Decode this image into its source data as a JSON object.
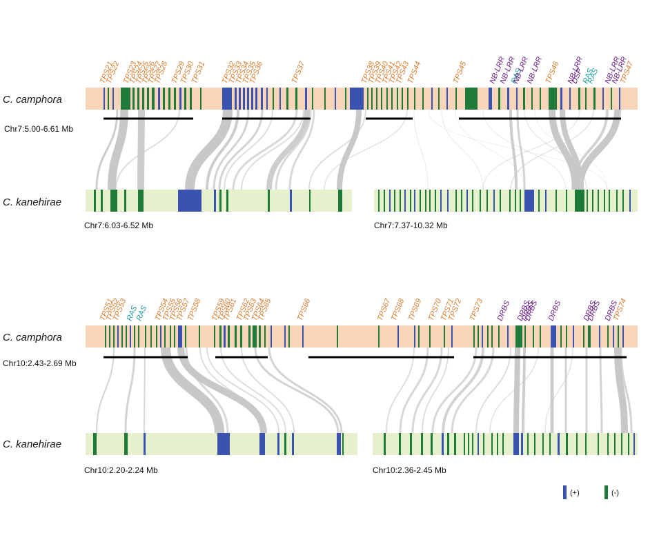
{
  "colors": {
    "camphora_bg": "#f8d5b8",
    "kanehirae_bg": "#e6f0cc",
    "plus_strand": "#3a52b0",
    "minus_strand": "#1f7a3a",
    "tps_label": "#d97a2a",
    "nblrr_label": "#6a1f86",
    "ras_label": "#1f9c9c",
    "link": "#c8c8c8",
    "block_line": "#000000"
  },
  "species": {
    "camphora": "C. camphora",
    "kanehirae": "C. kanehirae"
  },
  "legend": {
    "plus": "(+)",
    "minus": "(-)"
  },
  "panels": [
    {
      "coords": {
        "camphora": "Chr7:5.00-6.61 Mb",
        "kanehirae_left": "Chr7:6.03-6.52 Mb",
        "kanehirae_right": "Chr7:7.37-10.32 Mb"
      },
      "gene_labels": [
        {
          "t": "TPS21",
          "c": "tps"
        },
        {
          "t": "TPS22",
          "c": "tps"
        },
        {
          "t": "TPS23",
          "c": "tps"
        },
        {
          "t": "TPS24",
          "c": "tps"
        },
        {
          "t": "TPS25",
          "c": "tps"
        },
        {
          "t": "TPS26",
          "c": "tps"
        },
        {
          "t": "TPS27",
          "c": "tps"
        },
        {
          "t": "TPS28",
          "c": "tps"
        },
        {
          "t": "TPS29",
          "c": "tps"
        },
        {
          "t": "TPS30",
          "c": "tps"
        },
        {
          "t": "TPS31",
          "c": "tps"
        },
        {
          "t": "TPS32",
          "c": "tps"
        },
        {
          "t": "TPS33",
          "c": "tps"
        },
        {
          "t": "TPS34",
          "c": "tps"
        },
        {
          "t": "TPS35",
          "c": "tps"
        },
        {
          "t": "TPS36",
          "c": "tps"
        },
        {
          "t": "TPS37",
          "c": "tps"
        },
        {
          "t": "TPS38",
          "c": "tps"
        },
        {
          "t": "TPS39",
          "c": "tps"
        },
        {
          "t": "TPS40",
          "c": "tps"
        },
        {
          "t": "TPS41",
          "c": "tps"
        },
        {
          "t": "TPS42",
          "c": "tps"
        },
        {
          "t": "TPS43",
          "c": "tps"
        },
        {
          "t": "TPS44",
          "c": "tps"
        },
        {
          "t": "TPS45",
          "c": "tps"
        },
        {
          "t": "NB-LRR",
          "c": "nb"
        },
        {
          "t": "NB-LRR",
          "c": "nb"
        },
        {
          "t": "RAS",
          "c": "ras"
        },
        {
          "t": "NB-LRR",
          "c": "nb"
        },
        {
          "t": "NB-LRR",
          "c": "nb"
        },
        {
          "t": "TPS46",
          "c": "tps"
        },
        {
          "t": "NB-LRR",
          "c": "nb"
        },
        {
          "t": "DSP",
          "c": "nb"
        },
        {
          "t": "RAS",
          "c": "ras"
        },
        {
          "t": "RAS",
          "c": "ras"
        },
        {
          "t": "NB-LRR",
          "c": "nb"
        },
        {
          "t": "NB-LRR",
          "c": "nb"
        },
        {
          "t": "TPS47",
          "c": "tps"
        }
      ]
    },
    {
      "coords": {
        "camphora": "Chr10:2.43-2.69 Mb",
        "kanehirae_left": "Chr10:2.20-2.24 Mb",
        "kanehirae_right": "Chr10:2.36-2.45 Mb"
      },
      "gene_labels": [
        {
          "t": "TPS51",
          "c": "tps"
        },
        {
          "t": "TPS52",
          "c": "tps"
        },
        {
          "t": "TPS53",
          "c": "tps"
        },
        {
          "t": "RAS",
          "c": "ras"
        },
        {
          "t": "RAS",
          "c": "ras"
        },
        {
          "t": "TPS54",
          "c": "tps"
        },
        {
          "t": "TPS55",
          "c": "tps"
        },
        {
          "t": "TPS56",
          "c": "tps"
        },
        {
          "t": "TPS57",
          "c": "tps"
        },
        {
          "t": "TPS58",
          "c": "tps"
        },
        {
          "t": "TPS59",
          "c": "tps"
        },
        {
          "t": "TPS60",
          "c": "tps"
        },
        {
          "t": "TPS61",
          "c": "tps"
        },
        {
          "t": "TPS62",
          "c": "tps"
        },
        {
          "t": "TPS63",
          "c": "tps"
        },
        {
          "t": "TPS64",
          "c": "tps"
        },
        {
          "t": "TPS65",
          "c": "tps"
        },
        {
          "t": "TPS66",
          "c": "tps"
        },
        {
          "t": "TPS67",
          "c": "tps"
        },
        {
          "t": "TPS68",
          "c": "tps"
        },
        {
          "t": "TPS69",
          "c": "tps"
        },
        {
          "t": "TPS70",
          "c": "tps"
        },
        {
          "t": "TPS71",
          "c": "tps"
        },
        {
          "t": "TPS72",
          "c": "tps"
        },
        {
          "t": "TPS73",
          "c": "tps"
        },
        {
          "t": "DRBS",
          "c": "nb"
        },
        {
          "t": "DRBS",
          "c": "nb"
        },
        {
          "t": "DRBS",
          "c": "nb"
        },
        {
          "t": "DRBS",
          "c": "nb"
        },
        {
          "t": "DRBS",
          "c": "nb"
        },
        {
          "t": "DRBS",
          "c": "nb"
        },
        {
          "t": "DRBS",
          "c": "nb"
        },
        {
          "t": "DRBS",
          "c": "nb"
        },
        {
          "t": "TPS74",
          "c": "tps"
        }
      ]
    }
  ]
}
